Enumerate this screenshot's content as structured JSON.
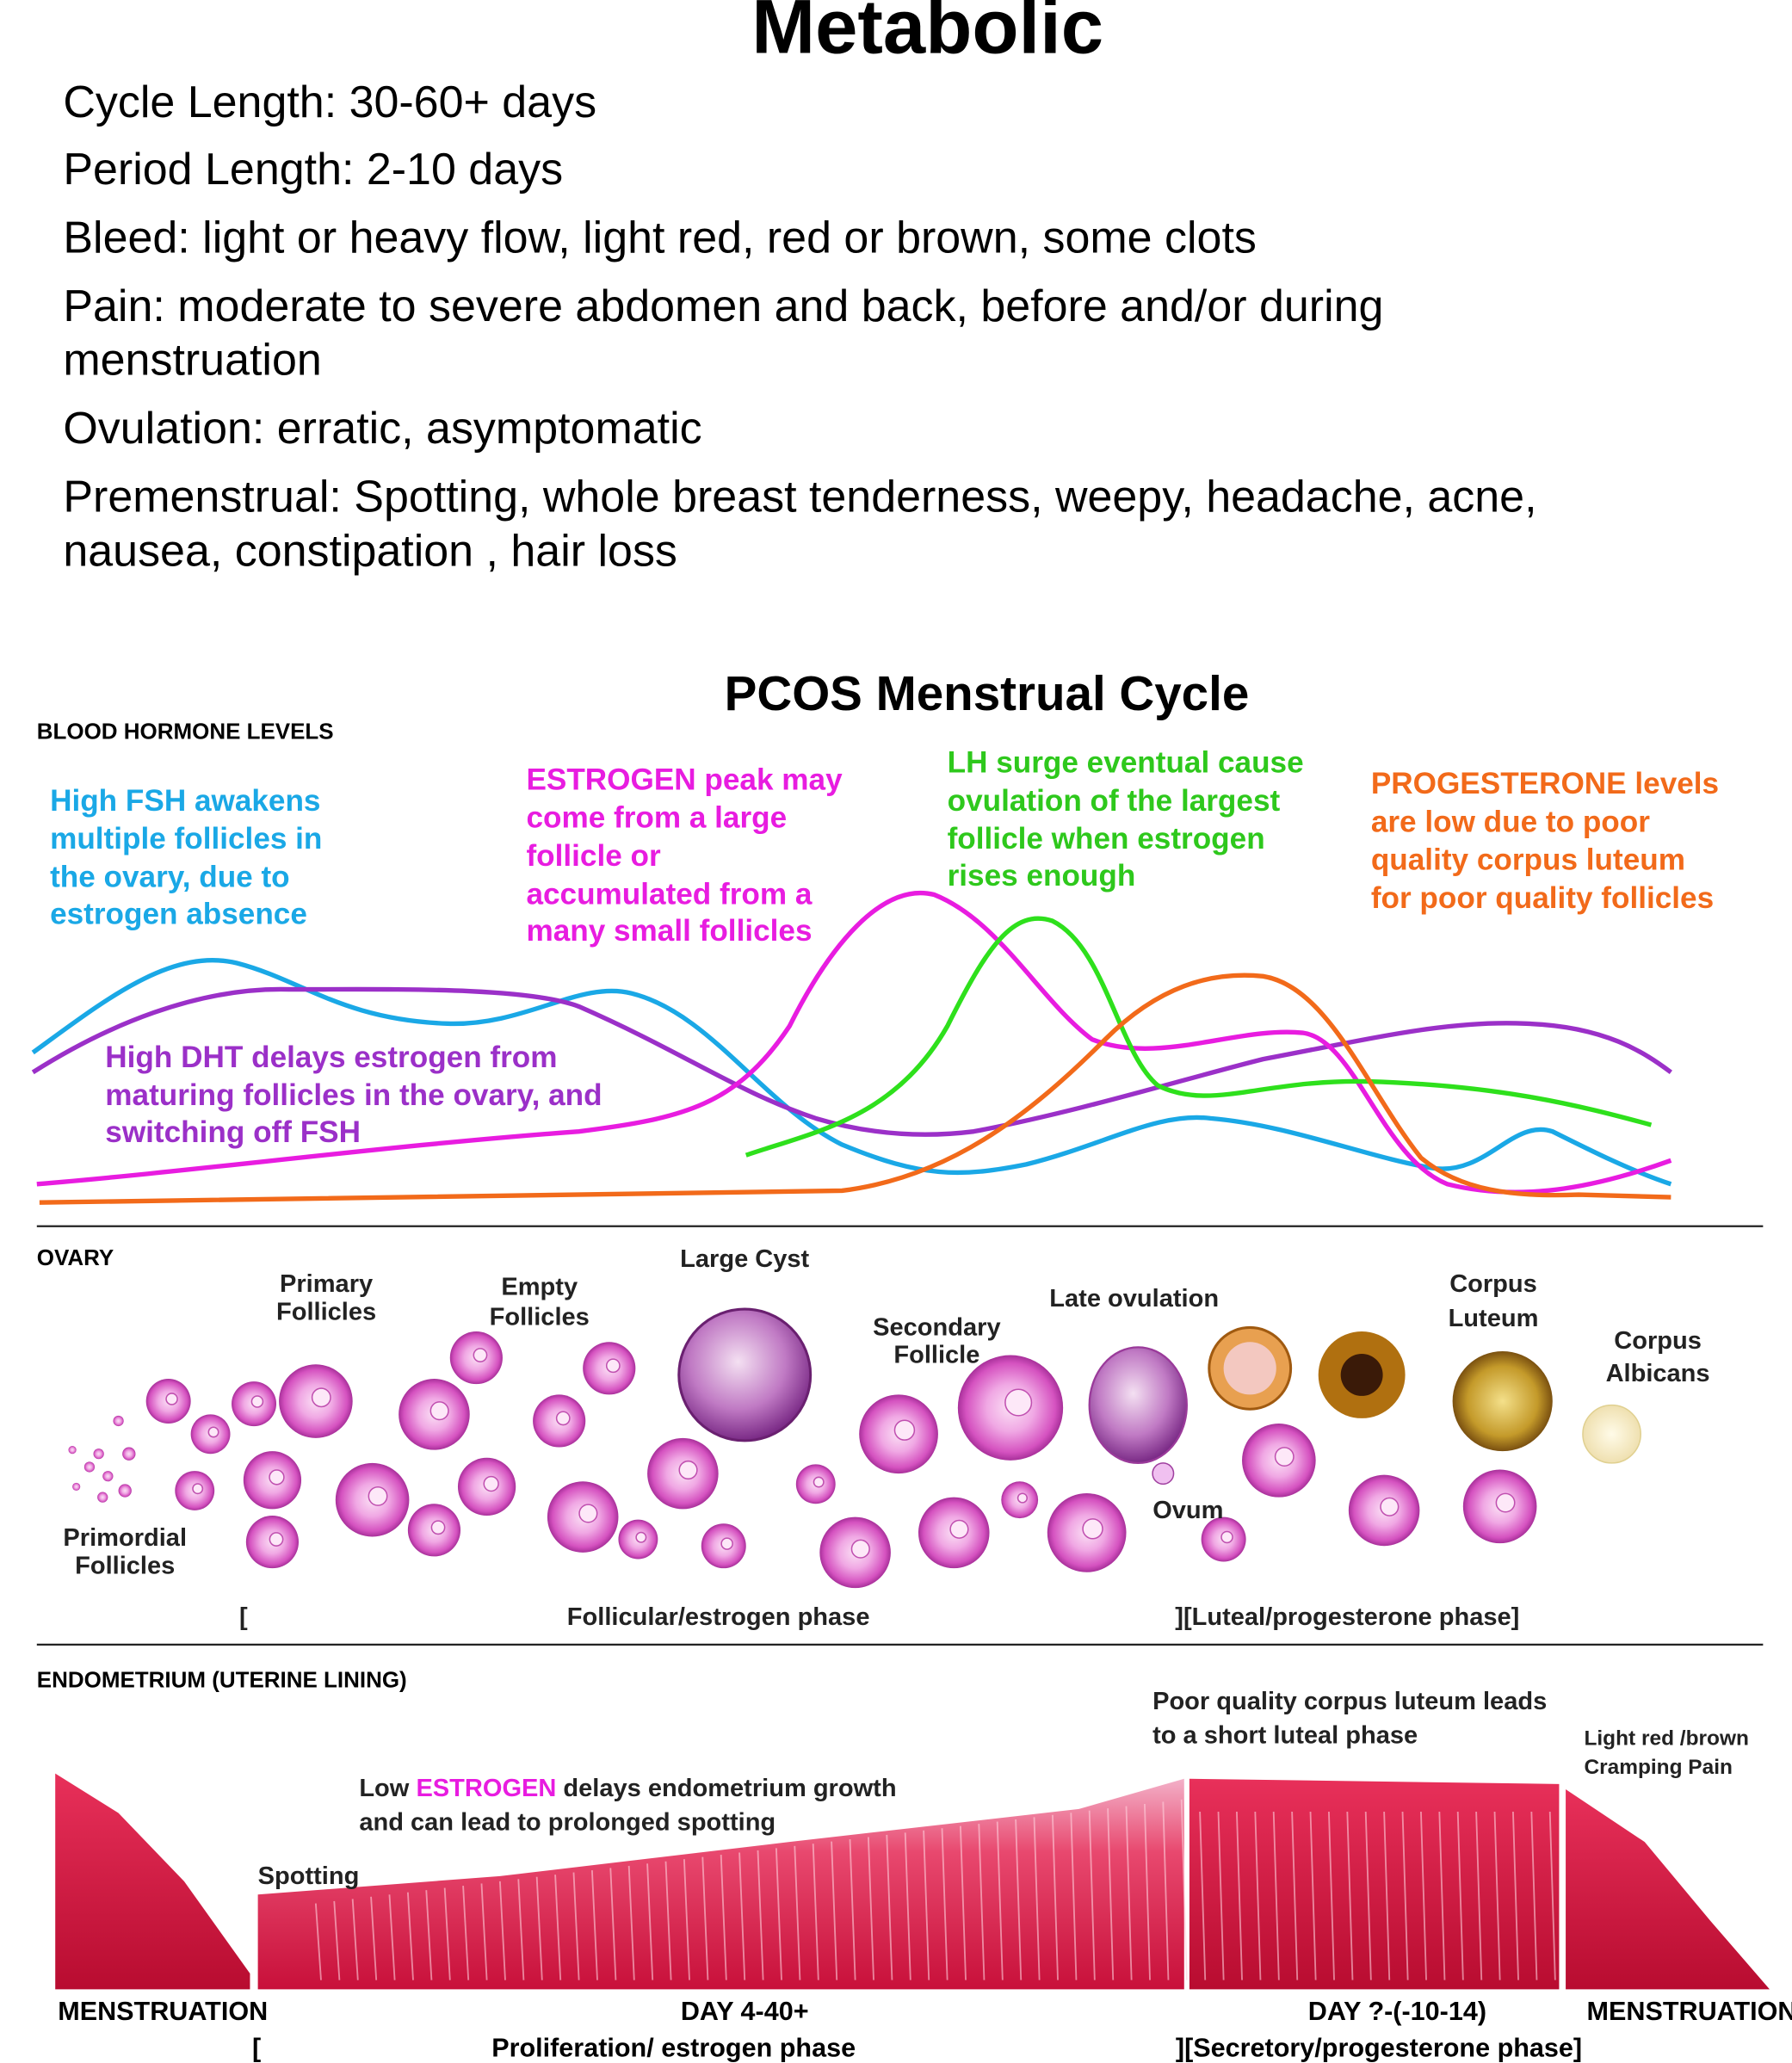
{
  "header": {
    "title": "Metabolic",
    "details": [
      [
        "Cycle Length: 30-60+ days"
      ],
      [
        "Period Length: 2-10 days"
      ],
      [
        "Bleed: light or heavy flow, light red, red or brown, some clots"
      ],
      [
        "Pain: moderate to severe abdomen and back, before and/or during",
        "menstruation"
      ],
      [
        "Ovulation: erratic, asymptomatic"
      ],
      [
        "Premenstrual: Spotting, whole breast tenderness, weepy, headache, acne,",
        "nausea, constipation , hair loss"
      ]
    ]
  },
  "diagram": {
    "title": "PCOS Menstrual Cycle",
    "hormones": {
      "label": "BLOOD HORMONE LEVELS",
      "fsh_note": [
        "High FSH awakens",
        "multiple follicles in",
        "the ovary, due to",
        "estrogen absence"
      ],
      "estrogen_note": [
        "ESTROGEN peak may",
        "come from a large",
        "follicle or",
        "accumulated from a",
        "many small follicles"
      ],
      "lh_note": [
        "LH surge eventual cause",
        "ovulation of the largest",
        "follicle when estrogen",
        "rises enough"
      ],
      "progesterone_note": [
        "PROGESTERONE levels",
        "are low due to poor",
        "quality  corpus luteum",
        "for poor quality follicles"
      ],
      "dht_note": [
        "High DHT delays estrogen from",
        "maturing follicles in the ovary, and",
        "switching off FSH"
      ]
    },
    "ovary": {
      "label": "OVARY",
      "primary": [
        "Primary",
        "Follicles"
      ],
      "empty": [
        "Empty",
        "Follicles"
      ],
      "cyst": "Large Cyst",
      "secondary": [
        "Secondary",
        "Follicle"
      ],
      "late": "Late ovulation",
      "luteum": [
        "Corpus",
        "Luteum"
      ],
      "albicans": [
        "Corpus",
        "Albicans"
      ],
      "ovum": "Ovum",
      "primordial": [
        "Primordial",
        "Follicles"
      ],
      "bracket": "[",
      "follicular_phase": "Follicular/estrogen phase",
      "luteal_phase": "][Luteal/progesterone phase]"
    },
    "endometrium": {
      "label": "ENDOMETRIUM (UTERINE LINING)",
      "luteum_note": [
        "Poor quality corpus luteum leads",
        "to a short luteal phase"
      ],
      "pain_note": [
        "Light red /brown",
        "Cramping Pain"
      ],
      "estrogen_note": [
        [
          "Low ",
          "ESTROGEN",
          " delays endometrium growth"
        ],
        [
          "and can lead to prolonged spotting"
        ]
      ],
      "spotting": "Spotting",
      "menstruation_start": "MENSTRUATION",
      "bracket": "[",
      "day_range": "DAY 4-40+",
      "proliferation": "Proliferation/ estrogen phase",
      "day_late": "DAY ?-(-10-14)",
      "secretory": "][Secretory/progesterone  phase]",
      "menstruation_end": "MENSTRUATION"
    }
  }
}
